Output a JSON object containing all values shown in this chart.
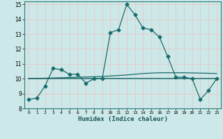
{
  "title": "",
  "xlabel": "Humidex (Indice chaleur)",
  "background_color": "#cce8e8",
  "grid_color_major": "#e8c8c8",
  "grid_color_minor": "#e8c8c8",
  "line_color": "#1a6b6b",
  "xlim": [
    -0.5,
    23.5
  ],
  "ylim": [
    8,
    15.2
  ],
  "yticks": [
    8,
    9,
    10,
    11,
    12,
    13,
    14,
    15
  ],
  "xticks": [
    0,
    1,
    2,
    3,
    4,
    5,
    6,
    7,
    8,
    9,
    10,
    11,
    12,
    13,
    14,
    15,
    16,
    17,
    18,
    19,
    20,
    21,
    22,
    23
  ],
  "series1_x": [
    0,
    1,
    2,
    3,
    4,
    5,
    6,
    7,
    8,
    9,
    10,
    11,
    12,
    13,
    14,
    15,
    16,
    17,
    18,
    19,
    20,
    21,
    22,
    23
  ],
  "series1_y": [
    8.6,
    8.7,
    9.5,
    10.7,
    10.6,
    10.3,
    10.3,
    9.7,
    10.0,
    10.0,
    13.1,
    13.3,
    15.0,
    14.3,
    13.4,
    13.3,
    12.8,
    11.5,
    10.1,
    10.1,
    10.0,
    8.6,
    9.2,
    10.0
  ],
  "series2_x": [
    0,
    23
  ],
  "series2_y": [
    10.0,
    10.0
  ],
  "series3_x": [
    0,
    3,
    6,
    9,
    12,
    14,
    16,
    19,
    23
  ],
  "series3_y": [
    10.0,
    10.05,
    10.1,
    10.15,
    10.25,
    10.35,
    10.4,
    10.4,
    10.35
  ],
  "marker_size": 2.5,
  "line_width": 0.9
}
